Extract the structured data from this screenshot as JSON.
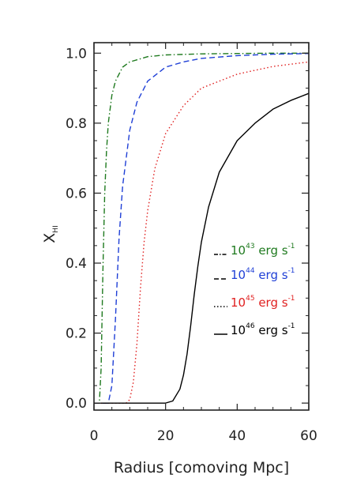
{
  "chart_data": {
    "type": "line",
    "xlabel": "Radius [comoving Mpc]",
    "ylabel": "X",
    "ylabel_sub": "HI",
    "xlim": [
      0,
      60
    ],
    "ylim": [
      -0.02,
      1.03
    ],
    "x_ticks": [
      0,
      20,
      40,
      60
    ],
    "x_tick_labels": [
      "0",
      "20",
      "40",
      "60"
    ],
    "y_ticks": [
      0.0,
      0.2,
      0.4,
      0.6,
      0.8,
      1.0
    ],
    "y_tick_labels": [
      "0.0",
      "0.2",
      "0.4",
      "0.6",
      "0.8",
      "1.0"
    ],
    "grid": false,
    "legend_position": "lower-right",
    "series": [
      {
        "legend_base": "10",
        "legend_exp": "43",
        "legend_unit": " erg s",
        "legend_unit_exp": "-1",
        "color": "#1f7a1f",
        "line_style": "dash-dot",
        "x": [
          0,
          1.5,
          2.0,
          2.5,
          3.0,
          3.5,
          4.0,
          5.0,
          6.0,
          8.0,
          10.0,
          15.0,
          20.0,
          30.0,
          40.0,
          50.0,
          60.0
        ],
        "y": [
          0.0,
          0.0,
          0.1,
          0.38,
          0.6,
          0.72,
          0.8,
          0.88,
          0.92,
          0.96,
          0.975,
          0.99,
          0.995,
          0.998,
          0.999,
          1.0,
          1.0
        ]
      },
      {
        "legend_base": "10",
        "legend_exp": "44",
        "legend_unit": " erg s",
        "legend_unit_exp": "-1",
        "color": "#1f3fd6",
        "line_style": "dashed",
        "x": [
          0,
          4.0,
          5.0,
          6.0,
          7.0,
          8.0,
          10.0,
          12.0,
          15.0,
          20.0,
          25.0,
          30.0,
          40.0,
          50.0,
          60.0
        ],
        "y": [
          0.0,
          0.0,
          0.05,
          0.24,
          0.47,
          0.62,
          0.78,
          0.86,
          0.92,
          0.96,
          0.975,
          0.985,
          0.993,
          0.997,
          0.999
        ]
      },
      {
        "legend_base": "10",
        "legend_exp": "45",
        "legend_unit": " erg s",
        "legend_unit_exp": "-1",
        "color": "#e02020",
        "line_style": "dotted",
        "x": [
          0,
          9.0,
          10.0,
          11.0,
          12.0,
          13.0,
          14.0,
          15.0,
          17.0,
          20.0,
          25.0,
          30.0,
          40.0,
          50.0,
          60.0
        ],
        "y": [
          0.0,
          0.0,
          0.01,
          0.06,
          0.17,
          0.33,
          0.46,
          0.55,
          0.67,
          0.77,
          0.85,
          0.9,
          0.94,
          0.962,
          0.975
        ]
      },
      {
        "legend_base": "10",
        "legend_exp": "46",
        "legend_unit": " erg s",
        "legend_unit_exp": "-1",
        "color": "#000000",
        "line_style": "solid",
        "x": [
          0,
          20.0,
          22.0,
          24.0,
          25.0,
          26.0,
          27.0,
          28.0,
          29.0,
          30.0,
          32.0,
          35.0,
          40.0,
          45.0,
          50.0,
          55.0,
          60.0
        ],
        "y": [
          0.0,
          0.0,
          0.006,
          0.04,
          0.08,
          0.14,
          0.22,
          0.31,
          0.39,
          0.46,
          0.56,
          0.66,
          0.75,
          0.8,
          0.84,
          0.865,
          0.885
        ]
      }
    ]
  }
}
